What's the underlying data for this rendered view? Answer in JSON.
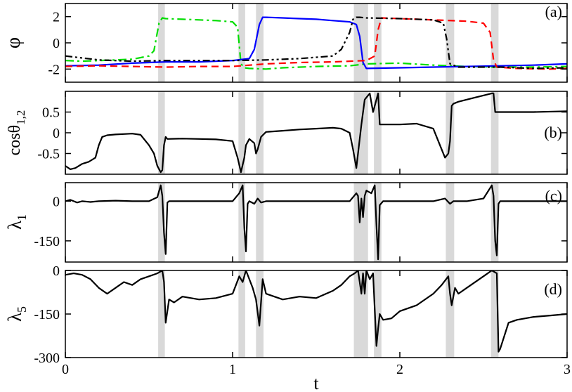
{
  "chart_data": [
    {
      "type": "line",
      "panel_label": "(a)",
      "ylabel": "φ",
      "ylim": [
        -3,
        3
      ],
      "yticks": [
        -2,
        0,
        2
      ],
      "ytick_labels": [
        "-2",
        "0",
        "2"
      ],
      "xlim": [
        0,
        3
      ],
      "shaded_t_intervals": [
        [
          0.555,
          0.595
        ],
        [
          1.035,
          1.075
        ],
        [
          1.14,
          1.185
        ],
        [
          1.725,
          1.81
        ],
        [
          1.845,
          1.89
        ],
        [
          2.275,
          2.325
        ],
        [
          2.545,
          2.59
        ]
      ],
      "series": [
        {
          "color": "#00dd00",
          "dash": "dashdot",
          "x": [
            0.0,
            0.1,
            0.2,
            0.3,
            0.4,
            0.5,
            0.53,
            0.56,
            0.58,
            0.6,
            0.7,
            0.8,
            0.9,
            1.0,
            1.03,
            1.05,
            1.07,
            1.1,
            1.2,
            1.3,
            1.5,
            1.7,
            1.8,
            2.0,
            2.2,
            2.4,
            2.6,
            2.8,
            3.0
          ],
          "y": [
            -1.35,
            -1.4,
            -1.35,
            -1.3,
            -1.25,
            -1.0,
            -0.6,
            1.5,
            1.9,
            1.85,
            1.8,
            1.75,
            1.7,
            1.6,
            1.2,
            -1.6,
            -1.9,
            -1.95,
            -2.0,
            -1.9,
            -1.8,
            -1.75,
            -1.6,
            -1.55,
            -1.7,
            -1.8,
            -1.85,
            -1.85,
            -1.8
          ]
        },
        {
          "color": "#0000ff",
          "dash": "solid",
          "x": [
            0.0,
            0.2,
            0.4,
            0.6,
            0.8,
            1.0,
            1.1,
            1.13,
            1.16,
            1.18,
            1.2,
            1.3,
            1.4,
            1.5,
            1.6,
            1.7,
            1.74,
            1.76,
            1.78,
            1.8,
            2.0,
            2.2,
            2.4,
            2.6,
            2.8,
            3.0
          ],
          "y": [
            -1.75,
            -1.7,
            -1.55,
            -1.45,
            -1.45,
            -1.35,
            -1.2,
            -0.5,
            1.4,
            1.95,
            1.95,
            1.9,
            1.85,
            1.8,
            1.7,
            1.6,
            1.4,
            0.5,
            -1.5,
            -1.95,
            -1.9,
            -1.85,
            -1.8,
            -1.75,
            -1.7,
            -1.6
          ]
        },
        {
          "color": "#ff0000",
          "dash": "dashed",
          "x": [
            0.0,
            0.2,
            0.4,
            0.6,
            0.8,
            1.0,
            1.2,
            1.4,
            1.6,
            1.8,
            1.85,
            1.87,
            1.89,
            2.0,
            2.2,
            2.4,
            2.5,
            2.54,
            2.56,
            2.58,
            2.7,
            2.9,
            3.0
          ],
          "y": [
            -1.8,
            -1.75,
            -1.8,
            -1.85,
            -1.8,
            -1.8,
            -1.6,
            -1.5,
            -1.45,
            -1.35,
            -1.0,
            1.0,
            1.9,
            1.85,
            1.75,
            1.65,
            1.5,
            0.8,
            -1.3,
            -1.85,
            -1.95,
            -2.0,
            -1.95
          ]
        },
        {
          "color": "#000000",
          "dash": "dashdotdot",
          "x": [
            0.0,
            0.2,
            0.4,
            0.6,
            0.8,
            1.0,
            1.2,
            1.4,
            1.6,
            1.65,
            1.7,
            1.72,
            1.74,
            1.76,
            1.8,
            2.0,
            2.2,
            2.26,
            2.28,
            2.3,
            2.35,
            2.6,
            2.8,
            3.0
          ],
          "y": [
            -1.0,
            -1.3,
            -1.4,
            -1.35,
            -1.35,
            -1.35,
            -1.3,
            -1.2,
            -1.0,
            -0.5,
            0.8,
            1.8,
            1.95,
            1.95,
            1.9,
            1.85,
            1.75,
            1.5,
            0.3,
            -1.6,
            -1.85,
            -1.85,
            -1.95,
            -1.9
          ]
        }
      ]
    },
    {
      "type": "line",
      "panel_label": "(b)",
      "ylabel": "cosθ",
      "ylabel_subscript": "1,2",
      "ylim": [
        -1,
        1
      ],
      "yticks": [
        -0.5,
        0,
        0.5
      ],
      "ytick_labels": [
        "-0.5",
        "0",
        "0.5"
      ],
      "xlim": [
        0,
        3
      ],
      "series": [
        {
          "color": "#000000",
          "dash": "solid",
          "x": [
            0.0,
            0.03,
            0.06,
            0.1,
            0.14,
            0.18,
            0.2,
            0.22,
            0.25,
            0.3,
            0.35,
            0.4,
            0.45,
            0.5,
            0.53,
            0.55,
            0.57,
            0.58,
            0.59,
            0.6,
            0.61,
            0.7,
            0.8,
            0.9,
            1.0,
            1.03,
            1.05,
            1.07,
            1.08,
            1.1,
            1.13,
            1.14,
            1.15,
            1.17,
            1.2,
            1.3,
            1.4,
            1.5,
            1.6,
            1.65,
            1.7,
            1.72,
            1.74,
            1.75,
            1.77,
            1.79,
            1.8,
            1.82,
            1.84,
            1.86,
            1.87,
            1.88,
            1.9,
            2.0,
            2.1,
            2.2,
            2.24,
            2.27,
            2.29,
            2.3,
            2.31,
            2.32,
            2.35,
            2.45,
            2.55,
            2.56,
            2.57,
            2.6,
            2.8,
            3.0
          ],
          "y": [
            -0.8,
            -0.88,
            -0.85,
            -0.75,
            -0.7,
            -0.6,
            -0.3,
            -0.1,
            -0.06,
            -0.04,
            -0.03,
            -0.02,
            -0.05,
            -0.3,
            -0.5,
            -0.8,
            -0.95,
            -0.9,
            -0.3,
            -0.1,
            -0.15,
            -0.14,
            -0.15,
            -0.16,
            -0.2,
            -0.6,
            -0.95,
            -0.6,
            -0.3,
            -0.15,
            -0.25,
            -0.5,
            -0.4,
            -0.1,
            0.02,
            0.05,
            0.08,
            0.1,
            0.12,
            0.1,
            0.0,
            -0.4,
            -0.85,
            -0.5,
            0.2,
            0.8,
            0.85,
            0.95,
            0.5,
            0.8,
            0.95,
            0.2,
            0.2,
            0.2,
            0.22,
            0.1,
            -0.3,
            -0.6,
            -0.5,
            -0.2,
            0.65,
            0.7,
            0.75,
            0.85,
            0.95,
            0.95,
            0.5,
            0.5,
            0.5,
            0.52
          ]
        }
      ]
    },
    {
      "type": "line",
      "panel_label": "(c)",
      "ylabel": "λ",
      "ylabel_subscript": "1",
      "ylim": [
        -230,
        70
      ],
      "yticks": [
        -150,
        0
      ],
      "ytick_labels": [
        "-150",
        "0"
      ],
      "xlim": [
        0,
        3
      ],
      "series": [
        {
          "color": "#000000",
          "dash": "solid",
          "x": [
            0.0,
            0.03,
            0.05,
            0.07,
            0.1,
            0.15,
            0.2,
            0.3,
            0.4,
            0.5,
            0.55,
            0.57,
            0.58,
            0.59,
            0.6,
            0.61,
            0.62,
            0.7,
            0.8,
            0.9,
            1.0,
            1.04,
            1.06,
            1.07,
            1.08,
            1.09,
            1.1,
            1.13,
            1.15,
            1.17,
            1.2,
            1.4,
            1.6,
            1.7,
            1.74,
            1.75,
            1.76,
            1.77,
            1.78,
            1.79,
            1.8,
            1.83,
            1.85,
            1.86,
            1.87,
            1.88,
            1.9,
            2.0,
            2.2,
            2.27,
            2.3,
            2.32,
            2.4,
            2.5,
            2.55,
            2.56,
            2.57,
            2.58,
            2.59,
            2.6,
            2.8,
            3.0
          ],
          "y": [
            0,
            5,
            0,
            -5,
            0,
            -3,
            0,
            2,
            0,
            0,
            15,
            60,
            20,
            -120,
            -200,
            -5,
            0,
            0,
            0,
            0,
            0,
            30,
            60,
            -100,
            -190,
            -10,
            0,
            -10,
            10,
            -5,
            0,
            0,
            0,
            0,
            30,
            20,
            -80,
            10,
            -60,
            20,
            40,
            30,
            60,
            -90,
            -220,
            -15,
            0,
            0,
            0,
            10,
            -10,
            0,
            0,
            10,
            60,
            20,
            -150,
            -205,
            -10,
            0,
            0,
            0
          ]
        }
      ]
    },
    {
      "type": "line",
      "panel_label": "(d)",
      "ylabel": "λ",
      "ylabel_subscript": "5",
      "ylim": [
        -300,
        0
      ],
      "yticks": [
        -300,
        -150,
        0
      ],
      "ytick_labels": [
        "-300",
        "-150",
        "0"
      ],
      "xlim": [
        0,
        3
      ],
      "xticks": [
        0,
        1,
        2,
        3
      ],
      "xtick_labels": [
        "0",
        "1",
        "2",
        "3"
      ],
      "xlabel": "t",
      "series": [
        {
          "color": "#000000",
          "dash": "solid",
          "x": [
            0.0,
            0.05,
            0.1,
            0.15,
            0.2,
            0.25,
            0.3,
            0.35,
            0.4,
            0.45,
            0.5,
            0.55,
            0.58,
            0.59,
            0.6,
            0.62,
            0.65,
            0.7,
            0.8,
            0.9,
            1.0,
            1.02,
            1.04,
            1.06,
            1.08,
            1.1,
            1.12,
            1.14,
            1.16,
            1.18,
            1.2,
            1.3,
            1.4,
            1.5,
            1.6,
            1.65,
            1.7,
            1.73,
            1.75,
            1.77,
            1.78,
            1.79,
            1.8,
            1.82,
            1.84,
            1.86,
            1.87,
            1.88,
            1.9,
            1.95,
            2.0,
            2.1,
            2.2,
            2.25,
            2.29,
            2.3,
            2.31,
            2.33,
            2.35,
            2.4,
            2.5,
            2.55,
            2.58,
            2.59,
            2.6,
            2.65,
            2.7,
            2.8,
            2.9,
            3.0
          ],
          "y": [
            -15,
            -10,
            -15,
            -30,
            -60,
            -80,
            -60,
            -40,
            -50,
            -30,
            -20,
            -10,
            0,
            -40,
            -180,
            -100,
            -110,
            -90,
            -100,
            -95,
            -80,
            -50,
            -20,
            -40,
            0,
            -30,
            -60,
            -100,
            -190,
            -30,
            -80,
            -100,
            -90,
            -95,
            -70,
            -50,
            -20,
            -10,
            0,
            -80,
            -10,
            -80,
            0,
            -30,
            -10,
            -260,
            -200,
            -150,
            -170,
            -165,
            -140,
            -120,
            -80,
            -50,
            -20,
            -80,
            -120,
            -60,
            -80,
            -60,
            -20,
            0,
            -10,
            -280,
            -270,
            -180,
            -170,
            -160,
            -155,
            -150
          ]
        }
      ]
    }
  ]
}
